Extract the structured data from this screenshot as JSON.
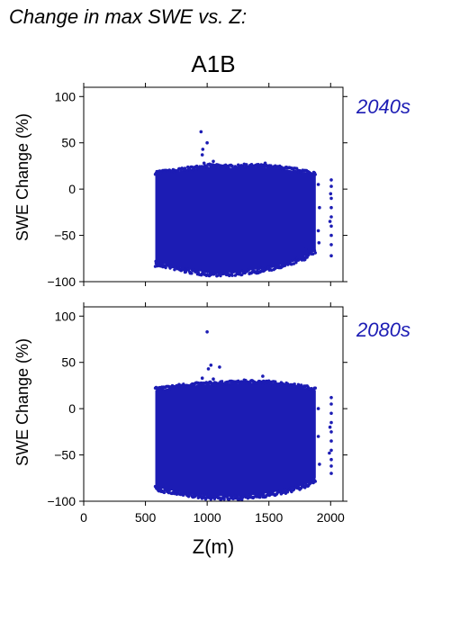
{
  "page": {
    "title": "Change in max SWE vs. Z:"
  },
  "colors": {
    "points": "#1c1cb4",
    "period_label": "#1c1cb4",
    "axis": "#000000"
  },
  "chart_data": [
    {
      "type": "scatter",
      "title": "A1B",
      "period_label": "2040s",
      "xlabel": "",
      "ylabel": "SWE Change (%)",
      "xlim": [
        0,
        2100
      ],
      "ylim": [
        -100,
        110
      ],
      "x_ticks": [
        "0",
        "500",
        "1000",
        "1500",
        "2000"
      ],
      "x_tick_values": [
        0,
        500,
        1000,
        1500,
        2000
      ],
      "x_tick_labels_visible": false,
      "y_ticks": [
        "100",
        "50",
        "0",
        "−50",
        "−100"
      ],
      "y_tick_values": [
        100,
        50,
        0,
        -50,
        -100
      ],
      "grid": false,
      "cloud": {
        "x_range": [
          580,
          1880
        ],
        "upper_envelope": [
          [
            580,
            17
          ],
          [
            700,
            18
          ],
          [
            800,
            20
          ],
          [
            1000,
            24
          ],
          [
            1200,
            23
          ],
          [
            1400,
            24
          ],
          [
            1600,
            22
          ],
          [
            1800,
            18
          ],
          [
            1880,
            15
          ]
        ],
        "lower_envelope": [
          [
            580,
            -80
          ],
          [
            700,
            -82
          ],
          [
            800,
            -86
          ],
          [
            1000,
            -90
          ],
          [
            1200,
            -90
          ],
          [
            1400,
            -87
          ],
          [
            1600,
            -82
          ],
          [
            1800,
            -72
          ],
          [
            1880,
            -65
          ]
        ]
      },
      "points": [
        [
          950,
          62
        ],
        [
          1000,
          50
        ],
        [
          965,
          43
        ],
        [
          960,
          37
        ],
        [
          975,
          28
        ],
        [
          1050,
          30
        ],
        [
          1020,
          27
        ],
        [
          1150,
          26
        ],
        [
          1300,
          27
        ],
        [
          1470,
          28
        ],
        [
          585,
          -78
        ],
        [
          600,
          -80
        ],
        [
          1720,
          -78
        ],
        [
          1800,
          -65
        ],
        [
          2005,
          10
        ],
        [
          2005,
          3
        ],
        [
          2005,
          -10
        ],
        [
          2005,
          -20
        ],
        [
          2005,
          -30
        ],
        [
          2005,
          -40
        ],
        [
          2005,
          -50
        ],
        [
          2005,
          -60
        ],
        [
          2005,
          -72
        ],
        [
          2000,
          -5
        ],
        [
          1995,
          -35
        ],
        [
          1900,
          5
        ],
        [
          1910,
          -20
        ],
        [
          1900,
          -45
        ],
        [
          1905,
          -58
        ],
        [
          1850,
          -62
        ],
        [
          1600,
          -84
        ],
        [
          1100,
          -92
        ],
        [
          900,
          -88
        ],
        [
          800,
          -86
        ],
        [
          1250,
          -91
        ]
      ]
    },
    {
      "type": "scatter",
      "title": "",
      "period_label": "2080s",
      "xlabel": "Z(m)",
      "ylabel": "SWE Change (%)",
      "xlim": [
        0,
        2100
      ],
      "ylim": [
        -100,
        110
      ],
      "x_ticks": [
        "0",
        "500",
        "1000",
        "1500",
        "2000"
      ],
      "x_tick_values": [
        0,
        500,
        1000,
        1500,
        2000
      ],
      "x_tick_labels_visible": true,
      "y_ticks": [
        "100",
        "50",
        "0",
        "−50",
        "−100"
      ],
      "y_tick_values": [
        100,
        50,
        0,
        -50,
        -100
      ],
      "grid": false,
      "cloud": {
        "x_range": [
          580,
          1880
        ],
        "upper_envelope": [
          [
            580,
            20
          ],
          [
            700,
            22
          ],
          [
            800,
            24
          ],
          [
            1000,
            26
          ],
          [
            1200,
            27
          ],
          [
            1400,
            28
          ],
          [
            1600,
            26
          ],
          [
            1800,
            22
          ],
          [
            1880,
            20
          ]
        ],
        "lower_envelope": [
          [
            580,
            -85
          ],
          [
            700,
            -88
          ],
          [
            800,
            -91
          ],
          [
            1000,
            -94
          ],
          [
            1200,
            -95
          ],
          [
            1400,
            -93
          ],
          [
            1600,
            -89
          ],
          [
            1800,
            -82
          ],
          [
            1880,
            -75
          ]
        ]
      },
      "points": [
        [
          1000,
          83
        ],
        [
          1030,
          47
        ],
        [
          1010,
          43
        ],
        [
          1100,
          45
        ],
        [
          960,
          33
        ],
        [
          1050,
          32
        ],
        [
          1450,
          35
        ],
        [
          1300,
          31
        ],
        [
          1500,
          30
        ],
        [
          590,
          -86
        ],
        [
          620,
          -88
        ],
        [
          1750,
          -87
        ],
        [
          1830,
          -78
        ],
        [
          2005,
          12
        ],
        [
          2005,
          5
        ],
        [
          2005,
          -5
        ],
        [
          2005,
          -15
        ],
        [
          2005,
          -25
        ],
        [
          2005,
          -35
        ],
        [
          2005,
          -45
        ],
        [
          2005,
          -55
        ],
        [
          2005,
          -62
        ],
        [
          2005,
          -70
        ],
        [
          1995,
          -20
        ],
        [
          1990,
          -48
        ],
        [
          1900,
          0
        ],
        [
          1900,
          -30
        ],
        [
          1910,
          -60
        ],
        [
          1860,
          -80
        ],
        [
          1200,
          -96
        ],
        [
          900,
          -93
        ],
        [
          1400,
          -95
        ],
        [
          1650,
          -90
        ]
      ]
    }
  ]
}
